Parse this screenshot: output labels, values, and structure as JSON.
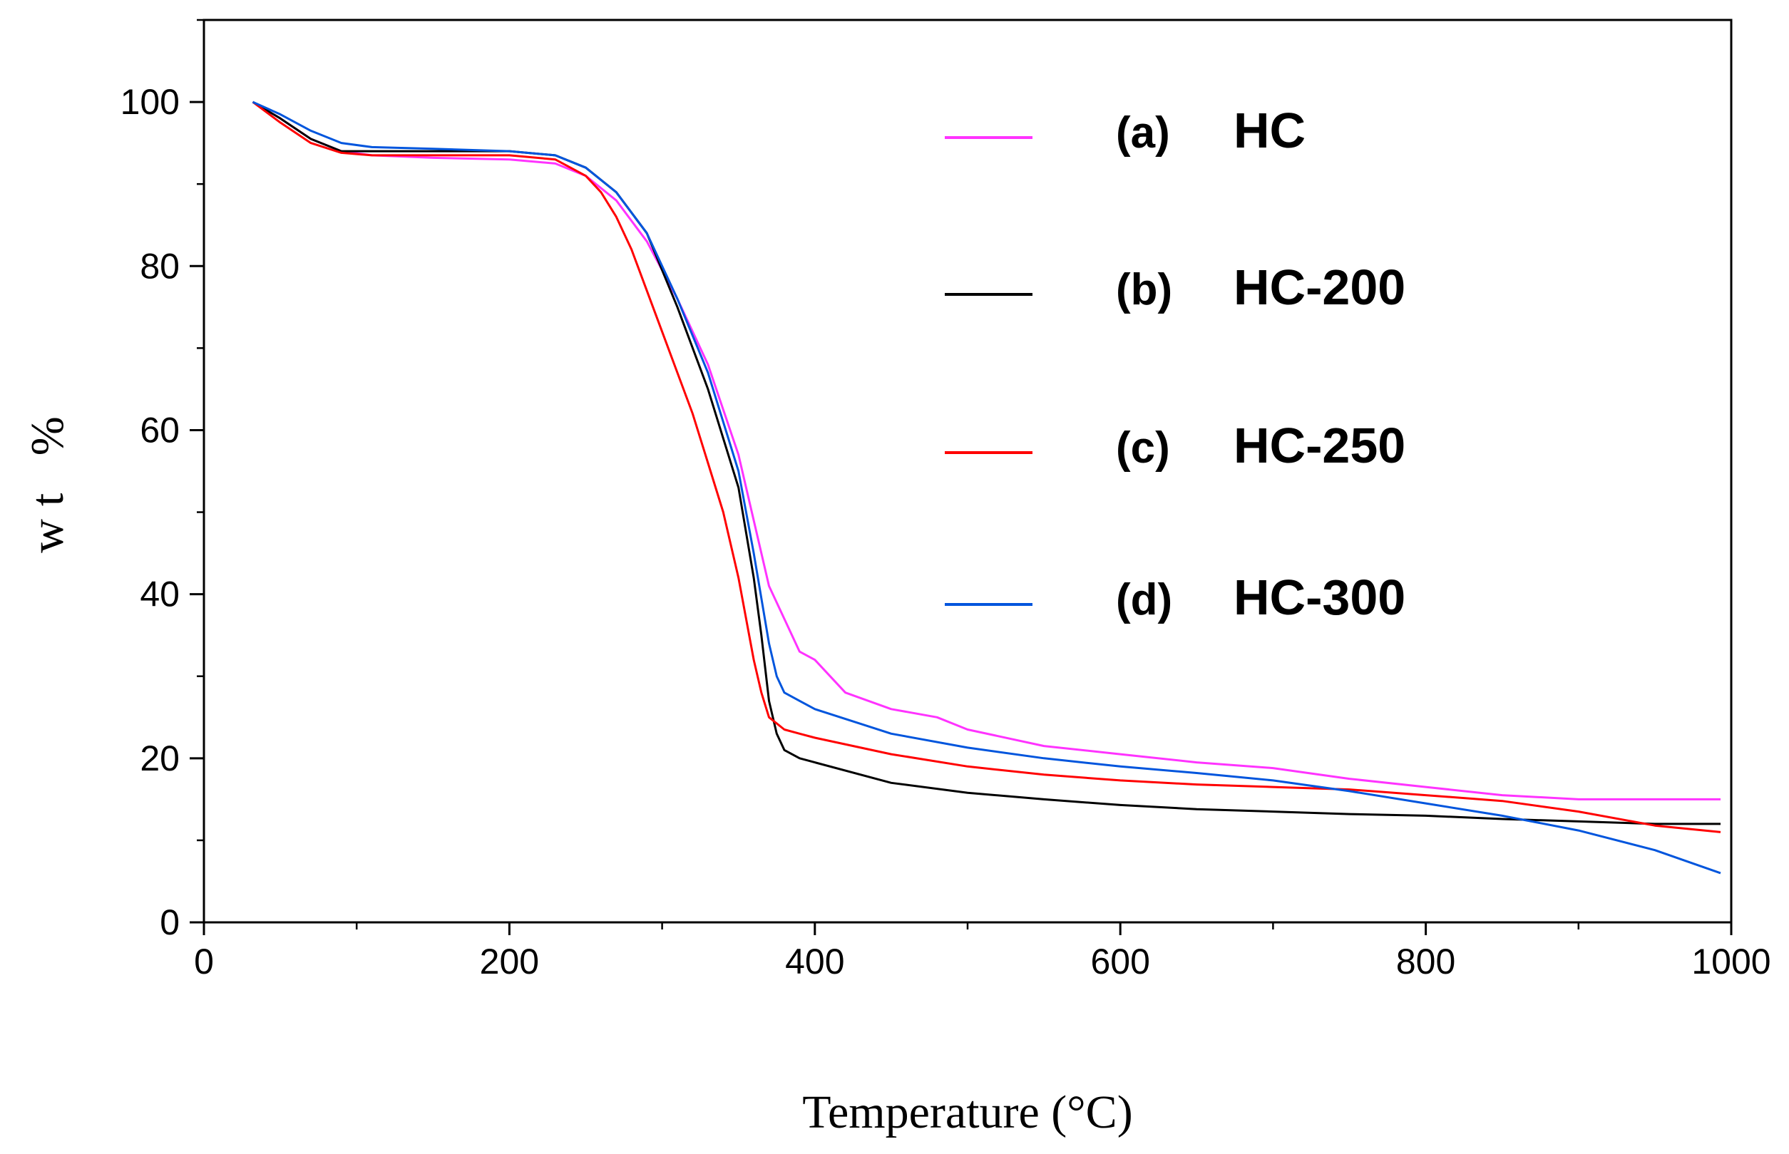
{
  "chart_data": {
    "type": "line",
    "xlabel": "Temperature (°C)",
    "ylabel": "wt %",
    "xlim": [
      0,
      1000
    ],
    "ylim": [
      0,
      110
    ],
    "x_ticks": [
      "0",
      "200",
      "400",
      "600",
      "800",
      "1000"
    ],
    "y_ticks": [
      "0",
      "20",
      "40",
      "60",
      "80",
      "100"
    ],
    "x_tick_values": [
      0,
      200,
      400,
      600,
      800,
      1000
    ],
    "y_tick_values": [
      0,
      20,
      40,
      60,
      80,
      100
    ],
    "grid": false,
    "legend_position": "top-right",
    "series": [
      {
        "name": "HC",
        "letter": "(a)",
        "color": "#ff33ff",
        "x": [
          32,
          50,
          70,
          90,
          110,
          150,
          200,
          230,
          250,
          270,
          290,
          310,
          330,
          350,
          360,
          370,
          380,
          390,
          400,
          410,
          420,
          450,
          480,
          500,
          550,
          600,
          650,
          700,
          750,
          800,
          850,
          900,
          950,
          993
        ],
        "y": [
          100,
          98,
          95.5,
          94,
          93.5,
          93.2,
          93,
          92.5,
          91,
          88,
          83,
          76,
          68,
          57,
          49,
          41,
          37,
          33,
          32,
          30,
          28,
          26,
          25,
          23.5,
          21.5,
          20.5,
          19.5,
          18.8,
          17.5,
          16.5,
          15.5,
          15,
          15,
          15
        ]
      },
      {
        "name": "HC-200",
        "letter": "(b)",
        "color": "#000000",
        "x": [
          32,
          50,
          70,
          90,
          110,
          150,
          200,
          230,
          250,
          270,
          290,
          310,
          330,
          350,
          360,
          365,
          370,
          375,
          380,
          390,
          400,
          450,
          500,
          550,
          600,
          650,
          700,
          750,
          800,
          850,
          900,
          950,
          993
        ],
        "y": [
          100,
          98,
          95.5,
          94,
          94,
          94,
          94,
          93.5,
          92,
          89,
          84,
          75,
          65,
          53,
          42,
          35,
          27,
          23,
          21,
          20,
          19.5,
          17,
          15.8,
          15,
          14.3,
          13.8,
          13.5,
          13.2,
          13,
          12.6,
          12.3,
          12,
          12
        ]
      },
      {
        "name": "HC-250",
        "letter": "(c)",
        "color": "#ff0000",
        "x": [
          32,
          50,
          70,
          90,
          110,
          150,
          200,
          230,
          250,
          260,
          270,
          280,
          290,
          300,
          310,
          320,
          330,
          340,
          350,
          360,
          365,
          370,
          380,
          390,
          400,
          450,
          500,
          550,
          600,
          650,
          700,
          750,
          800,
          850,
          900,
          950,
          993
        ],
        "y": [
          100,
          97.5,
          95,
          93.8,
          93.5,
          93.5,
          93.5,
          93,
          91,
          89,
          86,
          82,
          77,
          72,
          67,
          62,
          56,
          50,
          42,
          32,
          28,
          25,
          23.5,
          23,
          22.5,
          20.5,
          19,
          18,
          17.3,
          16.8,
          16.5,
          16.2,
          15.5,
          14.8,
          13.5,
          11.8,
          11
        ]
      },
      {
        "name": "HC-300",
        "letter": "(d)",
        "color": "#0055dd",
        "x": [
          32,
          50,
          70,
          90,
          110,
          150,
          200,
          230,
          250,
          270,
          290,
          310,
          330,
          350,
          360,
          370,
          375,
          380,
          390,
          400,
          450,
          500,
          550,
          600,
          650,
          700,
          750,
          800,
          850,
          900,
          950,
          993
        ],
        "y": [
          100,
          98.5,
          96.5,
          95,
          94.5,
          94.3,
          94,
          93.5,
          92,
          89,
          84,
          76,
          67,
          55,
          45,
          34,
          30,
          28,
          27,
          26,
          23,
          21.3,
          20,
          19,
          18.2,
          17.3,
          16,
          14.5,
          13,
          11.2,
          8.8,
          6
        ]
      }
    ]
  }
}
